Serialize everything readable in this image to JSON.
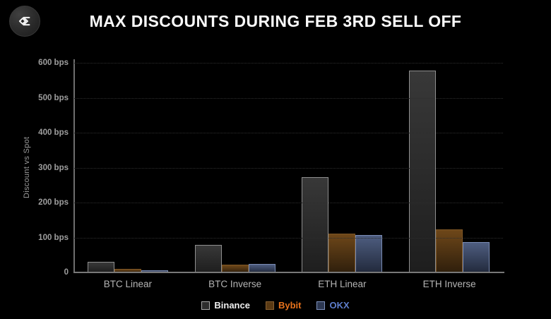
{
  "header": {
    "title": "MAX DISCOUNTS DURING FEB 3RD SELL OFF",
    "logo_icon": "sigma-diamond-logo"
  },
  "chart_data": {
    "type": "bar",
    "title": "MAX DISCOUNTS DURING FEB 3RD SELL OFF",
    "categories": [
      "BTC Linear",
      "BTC Inverse",
      "ETH Linear",
      "ETH Inverse"
    ],
    "series": [
      {
        "name": "Binance",
        "values": [
          30,
          78,
          273,
          578
        ],
        "fill_top": "#383838",
        "fill_bottom": "#1e1e1e",
        "border": "#8f8f8f",
        "swatch_fill": "#2d2d2d",
        "swatch_border": "#a8a8a8",
        "label_color": "#f0f0f0"
      },
      {
        "name": "Bybit",
        "values": [
          10,
          22,
          111,
          123
        ],
        "fill_top": "#6e4719",
        "fill_bottom": "#2f1f0c",
        "border": "#7d5524",
        "swatch_fill": "#5a3a14",
        "swatch_border": "#8a6030",
        "label_color": "#e8731c"
      },
      {
        "name": "OKX",
        "values": [
          6,
          25,
          107,
          86
        ],
        "fill_top": "#4e5d80",
        "fill_bottom": "#222a3c",
        "border": "#7a8cb4",
        "swatch_fill": "#2d3852",
        "swatch_border": "#7f93c0",
        "label_color": "#5e7ecc"
      }
    ],
    "xlabel": "",
    "ylabel": "Discount vs Spot",
    "ylim": [
      0,
      600
    ],
    "y_ticks": [
      {
        "value": 600,
        "label": "600 bps"
      },
      {
        "value": 500,
        "label": "500 bps"
      },
      {
        "value": 400,
        "label": "400 bps"
      },
      {
        "value": 300,
        "label": "300 bps"
      },
      {
        "value": 200,
        "label": "200 bps"
      },
      {
        "value": 100,
        "label": "100 bps"
      },
      {
        "value": 0,
        "label": "0"
      }
    ],
    "grid": "horizontal-dotted",
    "legend_position": "bottom-center",
    "background": "#000000"
  }
}
